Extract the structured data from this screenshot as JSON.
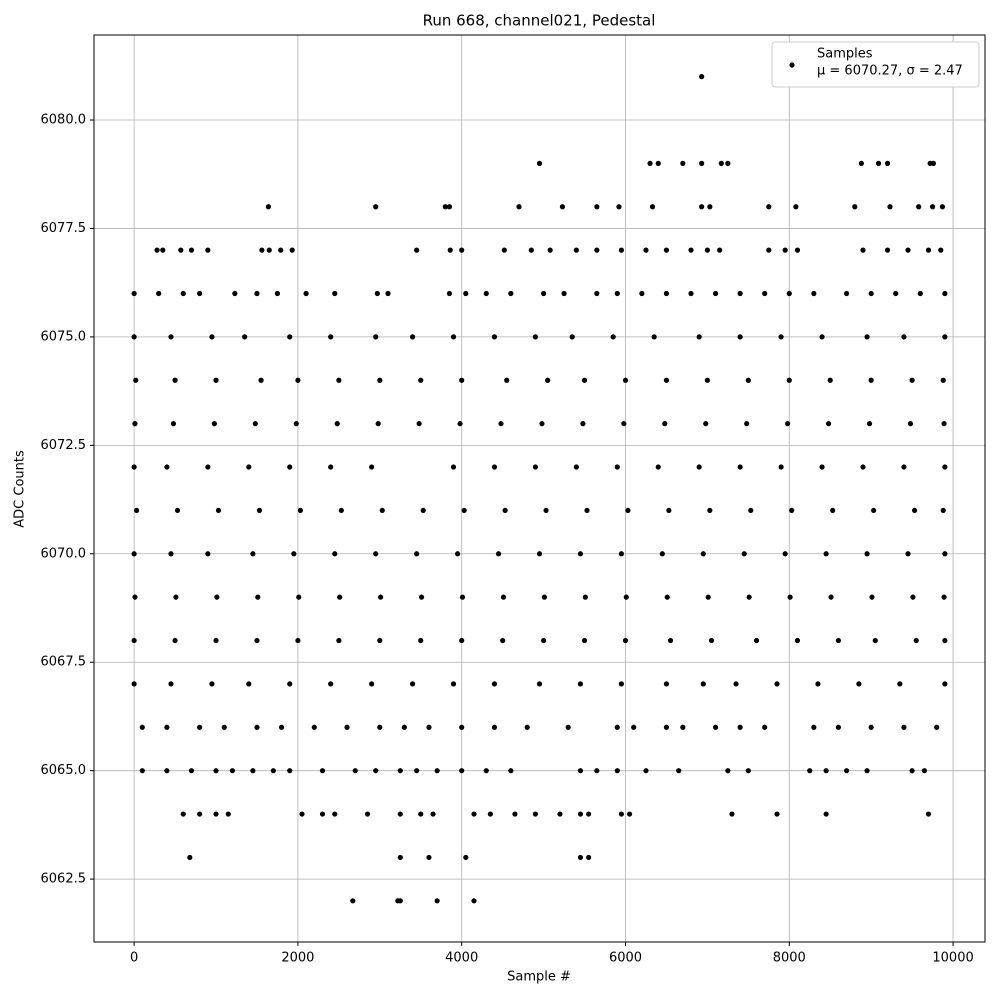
{
  "chart_data": {
    "type": "scatter",
    "title": "Run 668, channel021, Pedestal",
    "x_label": "Sample #",
    "y_label": "ADC Counts",
    "xlim": [
      -490,
      10390
    ],
    "ylim": [
      6061.05,
      6081.96
    ],
    "xticks": [
      0,
      2000,
      4000,
      6000,
      8000,
      10000
    ],
    "yticks": [
      6062.5,
      {
        "value": 6065,
        "label": "6065.0"
      },
      6067.5,
      {
        "value": 6070,
        "label": "6070.0"
      },
      6072.5,
      {
        "value": 6075,
        "label": "6075.0"
      },
      6077.5,
      {
        "value": 6080,
        "label": "6080.0"
      }
    ],
    "grid": true,
    "legend": "upper right",
    "annotation": "μ = 6070.27, σ = 2.47",
    "x": [
      6930,
      4950,
      6300,
      6400,
      6700,
      6930,
      7170,
      7250,
      8880,
      9090,
      9200,
      9720,
      9760,
      1640,
      2950,
      3800,
      3850,
      4700,
      5230,
      5650,
      5920,
      6330,
      6930,
      7030,
      7750,
      8080,
      8800,
      9230,
      9580,
      9750,
      9870,
      280,
      350,
      570,
      700,
      900,
      1560,
      1650,
      1790,
      1930,
      3450,
      3860,
      4000,
      4520,
      4850,
      5080,
      5400,
      5650,
      5950,
      6250,
      6500,
      6800,
      7000,
      7150,
      7750,
      7950,
      8100,
      8900,
      9200,
      9450,
      9700,
      9850,
      0,
      300,
      600,
      800,
      1230,
      1500,
      1750,
      2100,
      2450,
      2970,
      3100,
      3850,
      4050,
      4300,
      4600,
      5000,
      5250,
      5650,
      5900,
      6200,
      6500,
      6800,
      7100,
      7400,
      7700,
      8000,
      8300,
      8700,
      9000,
      9300,
      9600,
      9900,
      0,
      450,
      950,
      1350,
      1900,
      2400,
      2950,
      3400,
      3900,
      4400,
      4900,
      5350,
      5850,
      6350,
      6900,
      7400,
      7900,
      8400,
      8950,
      9400,
      9900,
      20,
      500,
      1000,
      1550,
      2000,
      2500,
      3000,
      3500,
      4000,
      4550,
      5050,
      5500,
      6000,
      6500,
      7000,
      7500,
      8000,
      8500,
      9000,
      9500,
      9880,
      10,
      480,
      980,
      1480,
      1980,
      2480,
      2980,
      3480,
      3980,
      4480,
      4980,
      5480,
      5980,
      6480,
      6980,
      7480,
      7980,
      8480,
      8980,
      9480,
      9890,
      0,
      400,
      900,
      1400,
      1900,
      2400,
      2900,
      3900,
      4400,
      4900,
      5400,
      5900,
      6400,
      6900,
      7400,
      7900,
      8400,
      8900,
      9400,
      9900,
      30,
      530,
      1030,
      1530,
      2030,
      2530,
      3030,
      3530,
      4030,
      4530,
      5030,
      5530,
      6030,
      6530,
      7030,
      7530,
      8030,
      8530,
      9030,
      9530,
      9880,
      0,
      450,
      900,
      1450,
      1950,
      2450,
      2950,
      3450,
      3950,
      4450,
      4950,
      5450,
      5950,
      6450,
      6950,
      7450,
      7950,
      8450,
      8950,
      9450,
      9900,
      10,
      510,
      1010,
      1510,
      2010,
      2510,
      3010,
      3510,
      4010,
      4510,
      5010,
      5510,
      6010,
      6510,
      7010,
      7510,
      8010,
      8510,
      9010,
      9510,
      9890,
      0,
      500,
      1000,
      1500,
      2000,
      2500,
      3000,
      3500,
      4000,
      4500,
      5000,
      5500,
      6000,
      6550,
      7050,
      7600,
      8100,
      8600,
      9050,
      9550,
      9900,
      0,
      450,
      950,
      1400,
      1900,
      2400,
      2900,
      3400,
      3900,
      4400,
      4950,
      5450,
      5950,
      6500,
      6950,
      7350,
      7850,
      8350,
      8850,
      9350,
      9900,
      100,
      400,
      800,
      1100,
      1500,
      1800,
      2200,
      2600,
      3000,
      3300,
      3600,
      4000,
      4400,
      4800,
      5300,
      5900,
      6100,
      6500,
      6700,
      7100,
      7400,
      7700,
      8300,
      8600,
      9000,
      9400,
      9800,
      100,
      400,
      700,
      1000,
      1200,
      1450,
      1700,
      1900,
      2300,
      2700,
      2950,
      3250,
      3450,
      3700,
      4000,
      4300,
      4600,
      5450,
      5650,
      5900,
      6250,
      6650,
      7250,
      7500,
      8250,
      8450,
      8700,
      8950,
      9500,
      9650,
      600,
      800,
      1000,
      1150,
      2050,
      2300,
      2450,
      2850,
      3250,
      3500,
      3650,
      4150,
      4350,
      4650,
      4900,
      5200,
      5450,
      5550,
      5950,
      6050,
      7300,
      7850,
      8450,
      9700,
      680,
      3250,
      3600,
      4050,
      5450,
      5550,
      2670,
      3220,
      3250,
      3700,
      4150
    ],
    "series": [
      {
        "name": "Samples",
        "color": "#000000",
        "values": [
          6081,
          6079,
          6079,
          6079,
          6079,
          6079,
          6079,
          6079,
          6079,
          6079,
          6079,
          6079,
          6079,
          6078,
          6078,
          6078,
          6078,
          6078,
          6078,
          6078,
          6078,
          6078,
          6078,
          6078,
          6078,
          6078,
          6078,
          6078,
          6078,
          6078,
          6078,
          6077,
          6077,
          6077,
          6077,
          6077,
          6077,
          6077,
          6077,
          6077,
          6077,
          6077,
          6077,
          6077,
          6077,
          6077,
          6077,
          6077,
          6077,
          6077,
          6077,
          6077,
          6077,
          6077,
          6077,
          6077,
          6077,
          6077,
          6077,
          6077,
          6077,
          6077,
          6076,
          6076,
          6076,
          6076,
          6076,
          6076,
          6076,
          6076,
          6076,
          6076,
          6076,
          6076,
          6076,
          6076,
          6076,
          6076,
          6076,
          6076,
          6076,
          6076,
          6076,
          6076,
          6076,
          6076,
          6076,
          6076,
          6076,
          6076,
          6076,
          6076,
          6076,
          6076,
          6075,
          6075,
          6075,
          6075,
          6075,
          6075,
          6075,
          6075,
          6075,
          6075,
          6075,
          6075,
          6075,
          6075,
          6075,
          6075,
          6075,
          6075,
          6075,
          6075,
          6075,
          6074,
          6074,
          6074,
          6074,
          6074,
          6074,
          6074,
          6074,
          6074,
          6074,
          6074,
          6074,
          6074,
          6074,
          6074,
          6074,
          6074,
          6074,
          6074,
          6074,
          6074,
          6073,
          6073,
          6073,
          6073,
          6073,
          6073,
          6073,
          6073,
          6073,
          6073,
          6073,
          6073,
          6073,
          6073,
          6073,
          6073,
          6073,
          6073,
          6073,
          6073,
          6073,
          6072,
          6072,
          6072,
          6072,
          6072,
          6072,
          6072,
          6072,
          6072,
          6072,
          6072,
          6072,
          6072,
          6072,
          6072,
          6072,
          6072,
          6072,
          6072,
          6072,
          6071,
          6071,
          6071,
          6071,
          6071,
          6071,
          6071,
          6071,
          6071,
          6071,
          6071,
          6071,
          6071,
          6071,
          6071,
          6071,
          6071,
          6071,
          6071,
          6071,
          6071,
          6070,
          6070,
          6070,
          6070,
          6070,
          6070,
          6070,
          6070,
          6070,
          6070,
          6070,
          6070,
          6070,
          6070,
          6070,
          6070,
          6070,
          6070,
          6070,
          6070,
          6070,
          6069,
          6069,
          6069,
          6069,
          6069,
          6069,
          6069,
          6069,
          6069,
          6069,
          6069,
          6069,
          6069,
          6069,
          6069,
          6069,
          6069,
          6069,
          6069,
          6069,
          6069,
          6068,
          6068,
          6068,
          6068,
          6068,
          6068,
          6068,
          6068,
          6068,
          6068,
          6068,
          6068,
          6068,
          6068,
          6068,
          6068,
          6068,
          6068,
          6068,
          6068,
          6068,
          6067,
          6067,
          6067,
          6067,
          6067,
          6067,
          6067,
          6067,
          6067,
          6067,
          6067,
          6067,
          6067,
          6067,
          6067,
          6067,
          6067,
          6067,
          6067,
          6067,
          6067,
          6066,
          6066,
          6066,
          6066,
          6066,
          6066,
          6066,
          6066,
          6066,
          6066,
          6066,
          6066,
          6066,
          6066,
          6066,
          6066,
          6066,
          6066,
          6066,
          6066,
          6066,
          6066,
          6066,
          6066,
          6066,
          6066,
          6066,
          6065,
          6065,
          6065,
          6065,
          6065,
          6065,
          6065,
          6065,
          6065,
          6065,
          6065,
          6065,
          6065,
          6065,
          6065,
          6065,
          6065,
          6065,
          6065,
          6065,
          6065,
          6065,
          6065,
          6065,
          6065,
          6065,
          6065,
          6065,
          6065,
          6065,
          6064,
          6064,
          6064,
          6064,
          6064,
          6064,
          6064,
          6064,
          6064,
          6064,
          6064,
          6064,
          6064,
          6064,
          6064,
          6064,
          6064,
          6064,
          6064,
          6064,
          6064,
          6064,
          6064,
          6064,
          6063,
          6063,
          6063,
          6063,
          6063,
          6063,
          6062,
          6062,
          6062,
          6062,
          6062
        ]
      }
    ]
  }
}
